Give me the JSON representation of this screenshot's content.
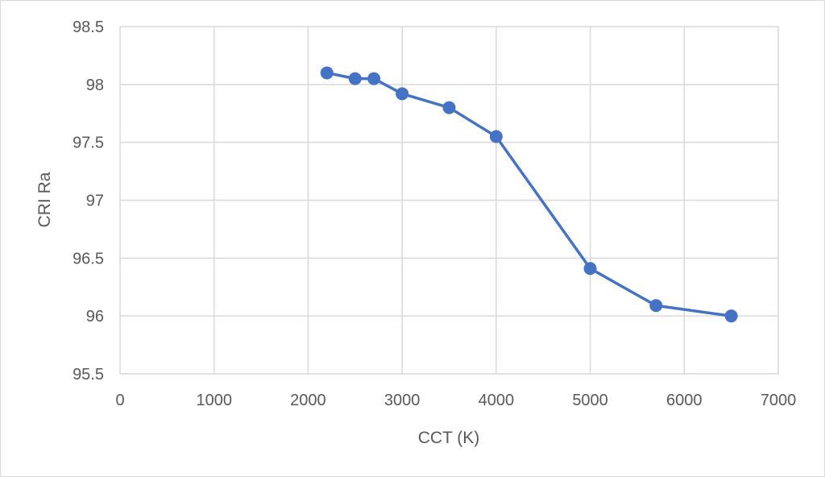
{
  "chart_data": {
    "type": "line",
    "title": "",
    "xlabel": "CCT (K)",
    "ylabel": "CRI Ra",
    "xlim": [
      0,
      7000
    ],
    "ylim": [
      95.5,
      98.5
    ],
    "x_ticks": [
      "0",
      "1000",
      "2000",
      "3000",
      "4000",
      "5000",
      "6000",
      "7000"
    ],
    "y_ticks": [
      "95.5",
      "96",
      "96.5",
      "97",
      "97.5",
      "98",
      "98.5"
    ],
    "grid": true,
    "series": [
      {
        "name": "CRI Ra",
        "color": "#4472C4",
        "x": [
          2200,
          2500,
          2700,
          3000,
          3500,
          4000,
          5000,
          5700,
          6500
        ],
        "y": [
          98.1,
          98.05,
          98.05,
          97.92,
          97.8,
          97.55,
          96.41,
          96.09,
          96.0
        ]
      }
    ]
  }
}
